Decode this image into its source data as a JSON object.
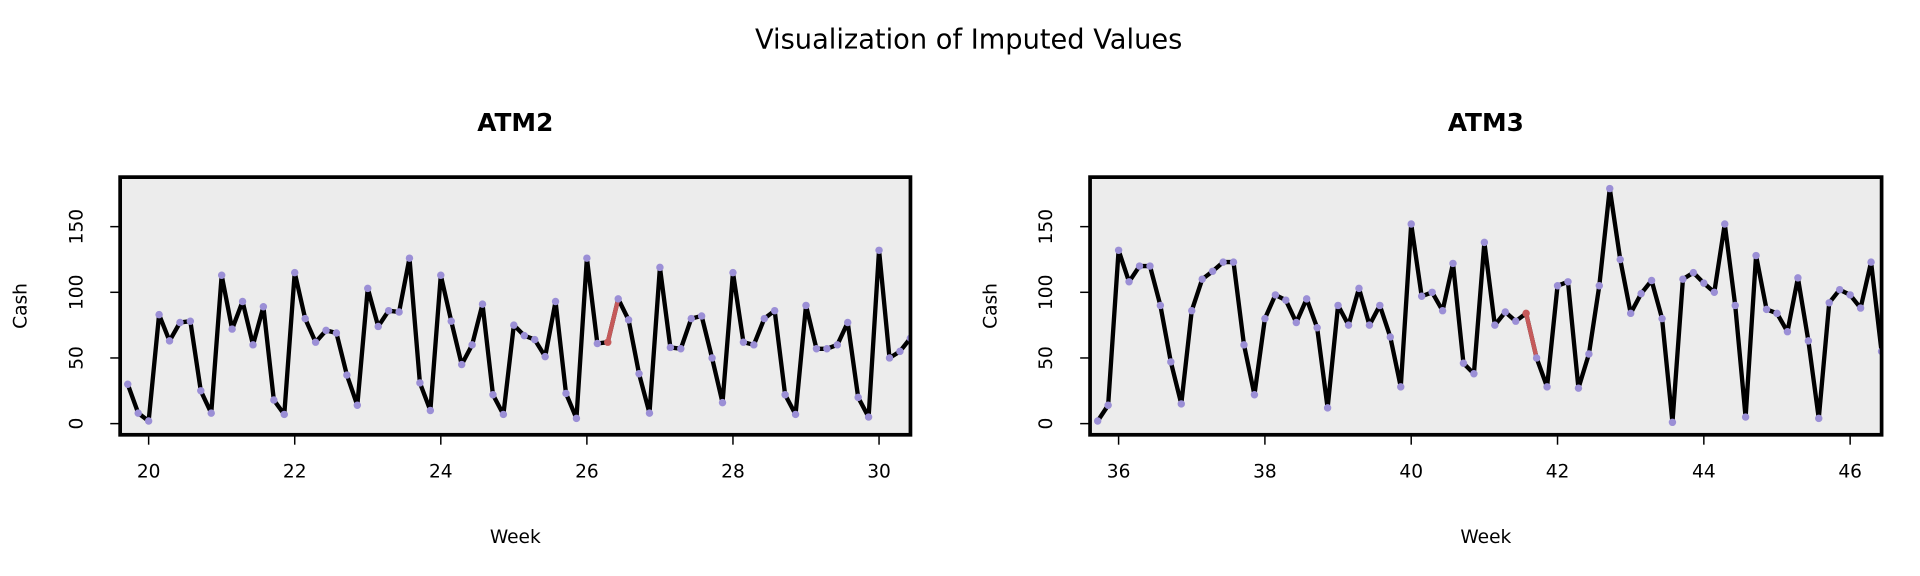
{
  "title": "Visualization of Imputed Values",
  "chart_data": [
    {
      "type": "line",
      "title": "ATM2",
      "xlabel": "Week",
      "ylabel": "Cash",
      "x": [
        19.714,
        19.857,
        20,
        20.143,
        20.286,
        20.429,
        20.571,
        20.714,
        20.857,
        21,
        21.143,
        21.286,
        21.429,
        21.571,
        21.714,
        21.857,
        22,
        22.143,
        22.286,
        22.429,
        22.571,
        22.714,
        22.857,
        23,
        23.143,
        23.286,
        23.429,
        23.571,
        23.714,
        23.857,
        24,
        24.143,
        24.286,
        24.429,
        24.571,
        24.714,
        24.857,
        25,
        25.143,
        25.286,
        25.429,
        25.571,
        25.714,
        25.857,
        26,
        26.143,
        26.286,
        26.429,
        26.571,
        26.714,
        26.857,
        27,
        27.143,
        27.286,
        27.429,
        27.571,
        27.714,
        27.857,
        28,
        28.143,
        28.286,
        28.429,
        28.571,
        28.714,
        28.857,
        29,
        29.143,
        29.286,
        29.429,
        29.571,
        29.714,
        29.857,
        30,
        30.143,
        30.286,
        30.429
      ],
      "series": [
        {
          "color": "#000000",
          "marker_color": "#9b8fd6",
          "values": [
            30,
            8,
            2,
            83,
            63,
            77,
            78,
            25,
            8,
            113,
            72,
            93,
            60,
            89,
            18,
            7,
            115,
            80,
            62,
            71,
            69,
            37,
            14,
            103,
            74,
            86,
            85,
            126,
            31,
            10,
            113,
            78,
            45,
            60,
            91,
            22,
            7,
            75,
            67,
            64,
            51,
            93,
            23,
            4,
            126,
            61,
            62,
            95,
            79,
            38,
            8,
            119,
            58,
            57,
            80,
            82,
            50,
            16,
            115,
            62,
            60,
            80,
            86,
            22,
            7,
            90,
            57,
            57,
            60,
            77,
            20,
            5,
            132,
            50,
            55,
            65
          ]
        }
      ],
      "imputed": [
        46,
        47
      ],
      "imputed_color": "#c55a5a",
      "background": "#ececec",
      "xlim": [
        19.61,
        30.43
      ],
      "ylim": [
        -8.5,
        187.7
      ],
      "xticks": [
        20,
        22,
        24,
        26,
        28,
        30
      ],
      "yticks": [
        0,
        50,
        100,
        150
      ]
    },
    {
      "type": "line",
      "title": "ATM3",
      "xlabel": "Week",
      "ylabel": "Cash",
      "x": [
        35.714,
        35.857,
        36,
        36.143,
        36.286,
        36.429,
        36.571,
        36.714,
        36.857,
        37,
        37.143,
        37.286,
        37.429,
        37.571,
        37.714,
        37.857,
        38,
        38.143,
        38.286,
        38.429,
        38.571,
        38.714,
        38.857,
        39,
        39.143,
        39.286,
        39.429,
        39.571,
        39.714,
        39.857,
        40,
        40.143,
        40.286,
        40.429,
        40.571,
        40.714,
        40.857,
        41,
        41.143,
        41.286,
        41.429,
        41.571,
        41.714,
        41.857,
        42,
        42.143,
        42.286,
        42.429,
        42.571,
        42.714,
        42.857,
        43,
        43.143,
        43.286,
        43.429,
        43.571,
        43.714,
        43.857,
        44,
        44.143,
        44.286,
        44.429,
        44.571,
        44.714,
        44.857,
        45,
        45.143,
        45.286,
        45.429,
        45.571,
        45.714,
        45.857,
        46,
        46.143,
        46.286,
        46.429
      ],
      "series": [
        {
          "color": "#000000",
          "marker_color": "#9b8fd6",
          "values": [
            2,
            14,
            132,
            108,
            120,
            120,
            90,
            47,
            15,
            86,
            110,
            116,
            123,
            123,
            60,
            22,
            80,
            98,
            94,
            77,
            95,
            73,
            12,
            90,
            75,
            103,
            75,
            90,
            66,
            28,
            152,
            97,
            100,
            86,
            122,
            46,
            38,
            138,
            75,
            85,
            78,
            84,
            50,
            28,
            105,
            108,
            27,
            53,
            105,
            179,
            125,
            84,
            99,
            109,
            80,
            1,
            110,
            115,
            107,
            100,
            152,
            90,
            5,
            128,
            87,
            84,
            70,
            111,
            63,
            4,
            92,
            102,
            98,
            88,
            123,
            55
          ]
        }
      ],
      "imputed": [
        41,
        42
      ],
      "imputed_color": "#c55a5a",
      "background": "#ececec",
      "xlim": [
        35.61,
        46.43
      ],
      "ylim": [
        -8.5,
        187.7
      ],
      "xticks": [
        36,
        38,
        40,
        42,
        44,
        46
      ],
      "yticks": [
        0,
        50,
        100,
        150
      ]
    }
  ]
}
